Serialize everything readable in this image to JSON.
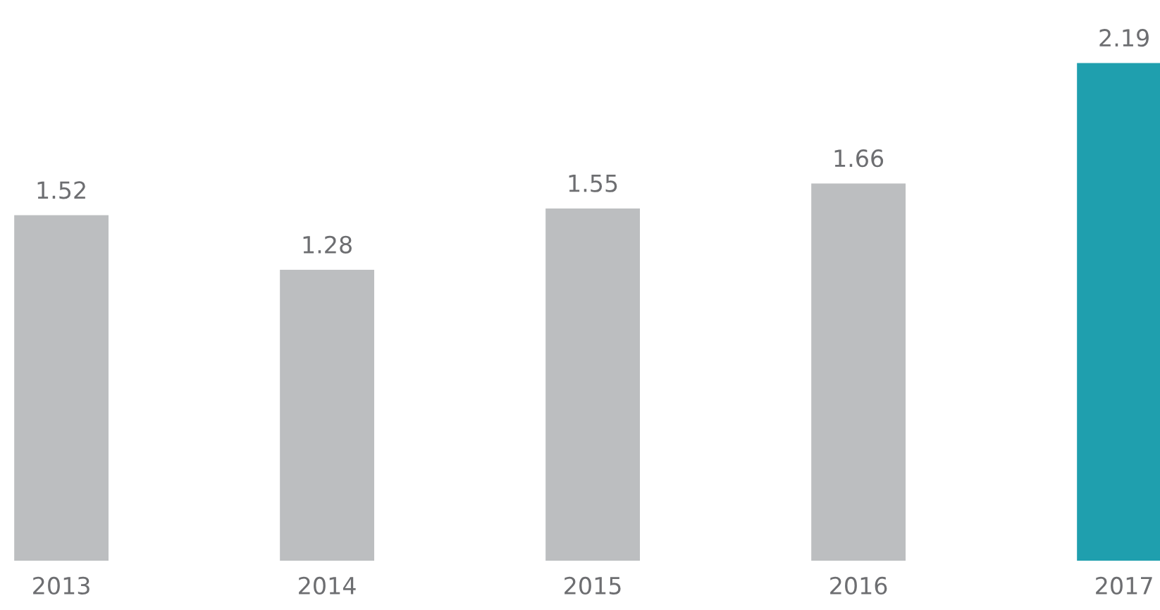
{
  "chart_data": {
    "type": "bar",
    "categories": [
      "2013",
      "2014",
      "2015",
      "2016",
      "2017"
    ],
    "values": [
      1.52,
      1.28,
      1.55,
      1.66,
      2.19
    ],
    "colors": [
      "#bcbec0",
      "#bcbec0",
      "#bcbec0",
      "#bcbec0",
      "#1f9fae"
    ],
    "data_labels": true,
    "grid": false,
    "legend": false
  }
}
